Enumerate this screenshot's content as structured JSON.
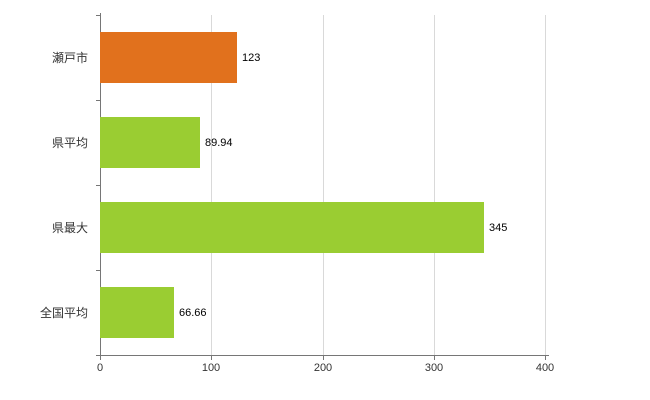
{
  "chart_data": {
    "type": "bar",
    "orientation": "horizontal",
    "title": "",
    "xlabel": "",
    "ylabel": "",
    "categories": [
      "瀬戸市",
      "県平均",
      "県最大",
      "全国平均"
    ],
    "values": [
      123,
      89.94,
      345,
      66.66
    ],
    "value_labels": [
      "123",
      "89.94",
      "345",
      "66.66"
    ],
    "bar_colors": [
      "#e1711d",
      "#9acd32",
      "#9acd32",
      "#9acd32"
    ],
    "xlim": [
      0,
      400
    ],
    "x_ticks": [
      0,
      100,
      200,
      300,
      400
    ],
    "x_tick_labels": [
      "0",
      "100",
      "200",
      "300",
      "400"
    ],
    "grid": "vertical-only",
    "legend": "none"
  },
  "colors": {
    "background": "#ffffff",
    "axis": "#767676",
    "grid": "#d9d9d9",
    "text": "#333333",
    "value_text": "#000000",
    "highlight_bar": "#e1711d",
    "normal_bar": "#9acd32"
  }
}
